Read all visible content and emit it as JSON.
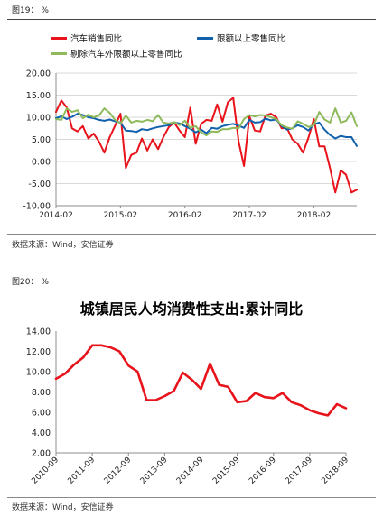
{
  "figure19": {
    "label": "图19：  %",
    "source": "数据来源：Wind，安信证券"
  },
  "figure20": {
    "label": "图20：  %",
    "source": "数据来源：Wind，安信证券"
  },
  "colors": {
    "red": "#e8131b",
    "blue": "#1261ad",
    "green": "#8fba5b",
    "grid": "#d9d9d9",
    "axis": "#8c8c8c"
  },
  "chart_data": [
    {
      "type": "line",
      "title": "",
      "x_tick_labels": [
        "2014-02",
        "2015-02",
        "2016-02",
        "2017-02",
        "2018-02"
      ],
      "x_range": [
        0,
        56
      ],
      "ylim": [
        -10,
        20
      ],
      "y_ticks": [
        "-10.00",
        "-5.00",
        "0.00",
        "5.00",
        "10.00",
        "15.00",
        "20.00"
      ],
      "grid": true,
      "legend_position": "top",
      "series": [
        {
          "name": "汽车销售同比",
          "color": "#e8131b",
          "values": [
            11.2,
            13.8,
            12.2,
            7.5,
            6.8,
            8.0,
            5.2,
            6.3,
            4.5,
            2.0,
            5.5,
            8.1,
            10.8,
            -1.5,
            1.5,
            2.0,
            5.2,
            2.5,
            5.0,
            2.8,
            5.5,
            7.8,
            8.8,
            7.0,
            5.5,
            12.2,
            4.0,
            8.5,
            9.4,
            9.2,
            12.9,
            9.0,
            13.4,
            14.4,
            4.5,
            -1.0,
            10.2,
            7.0,
            6.8,
            10.4,
            10.8,
            10.0,
            7.5,
            7.6,
            5.0,
            4.0,
            2.0,
            5.4,
            9.6,
            3.4,
            3.4,
            -1.5,
            -7.0,
            -2.0,
            -3.0,
            -7.0,
            -6.4
          ]
        },
        {
          "name": "限额以上零售同比",
          "color": "#1261ad",
          "values": [
            9.8,
            10.2,
            9.6,
            10.1,
            10.8,
            10.5,
            10.0,
            9.8,
            9.4,
            9.2,
            9.5,
            9.1,
            8.8,
            7.0,
            6.9,
            6.7,
            7.3,
            7.1,
            7.5,
            7.8,
            8.0,
            8.2,
            8.8,
            8.6,
            8.0,
            7.4,
            6.6,
            7.2,
            6.4,
            7.6,
            7.4,
            8.0,
            8.3,
            8.5,
            8.1,
            7.6,
            9.4,
            8.8,
            8.9,
            9.7,
            9.3,
            9.5,
            8.0,
            7.2,
            7.5,
            8.2,
            7.8,
            7.0,
            8.4,
            8.8,
            7.2,
            6.0,
            5.2,
            5.8,
            5.5,
            5.5,
            3.5
          ]
        },
        {
          "name": "剔除汽车外限额以上零售同比",
          "color": "#8fba5b",
          "values": [
            9.6,
            9.4,
            12.0,
            11.2,
            11.6,
            9.8,
            10.6,
            10.0,
            10.4,
            12.0,
            11.0,
            9.4,
            8.6,
            10.4,
            8.8,
            9.2,
            9.0,
            9.4,
            9.1,
            10.5,
            8.8,
            8.6,
            8.9,
            8.2,
            9.2,
            7.6,
            8.0,
            6.6,
            5.9,
            6.8,
            6.7,
            7.3,
            7.3,
            7.6,
            7.5,
            9.6,
            10.5,
            10.2,
            10.5,
            10.4,
            10.0,
            9.6,
            8.2,
            7.7,
            7.4,
            9.1,
            8.5,
            7.8,
            8.2,
            11.2,
            9.5,
            8.8,
            12.0,
            8.8,
            9.2,
            11.1,
            8.0
          ]
        }
      ]
    },
    {
      "type": "line",
      "title": "城镇居民人均消费性支出:累计同比",
      "x_tick_labels": [
        "2010-09",
        "2011-09",
        "2012-09",
        "2013-09",
        "2014-09",
        "2015-09",
        "2016-09",
        "2017-09",
        "2018-09"
      ],
      "x_range": [
        0,
        32
      ],
      "ylim": [
        2,
        14
      ],
      "y_ticks": [
        "2.00",
        "4.00",
        "6.00",
        "8.00",
        "10.00",
        "12.00",
        "14.00"
      ],
      "grid": false,
      "series": [
        {
          "name": "",
          "color": "#e8131b",
          "values": [
            9.3,
            9.8,
            10.7,
            11.4,
            12.6,
            12.6,
            12.4,
            12.0,
            10.6,
            10.0,
            7.2,
            7.2,
            7.6,
            8.1,
            9.9,
            9.2,
            8.3,
            10.8,
            8.7,
            8.5,
            7.0,
            7.1,
            7.9,
            7.5,
            7.4,
            7.9,
            7.0,
            6.7,
            6.2,
            5.9,
            5.7,
            6.8,
            6.4
          ]
        }
      ]
    }
  ]
}
